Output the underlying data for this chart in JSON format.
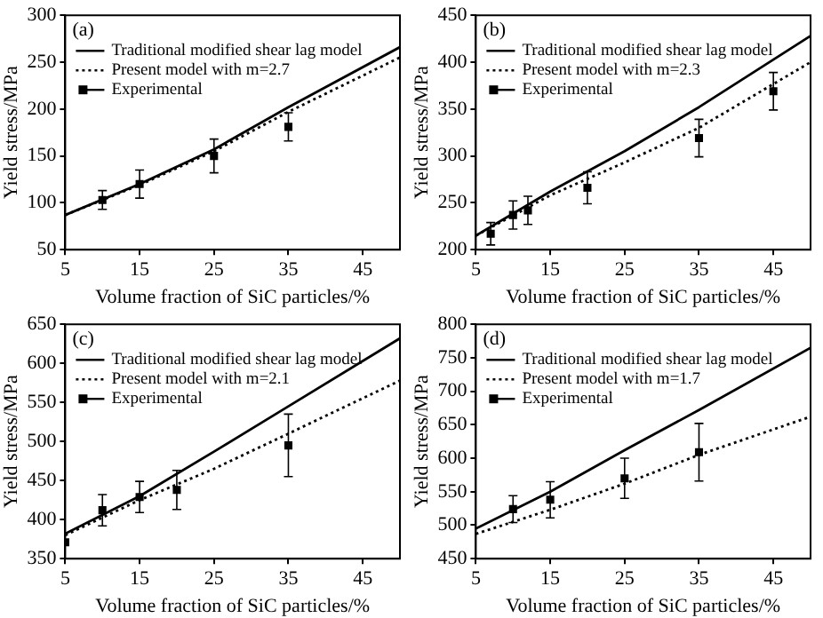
{
  "chart_data": [
    {
      "type": "line",
      "annotations": [
        "(a)"
      ],
      "xlabel": "Volume fraction of SiC particles/%",
      "ylabel": "Yield stress/MPa",
      "xlim": [
        5,
        50
      ],
      "xticks": [
        5,
        15,
        25,
        35,
        45
      ],
      "ylim": [
        50,
        300
      ],
      "yticks": [
        50,
        100,
        150,
        200,
        250,
        300
      ],
      "grid": false,
      "legend": "top left",
      "series": [
        {
          "name": "Traditional modified shear lag model",
          "color": "#000000",
          "line_style": "solid",
          "marker": "none",
          "x": [
            5,
            15,
            25,
            35,
            50
          ],
          "values": [
            87,
            120,
            157,
            202,
            266
          ]
        },
        {
          "name": "Present model with m=2.7",
          "color": "#000000",
          "line_style": "dotted",
          "marker": "none",
          "x": [
            5,
            15,
            25,
            35,
            50
          ],
          "values": [
            87,
            119,
            155,
            197,
            255
          ]
        },
        {
          "name": "Experimental",
          "type": "scatter",
          "color": "#000000",
          "marker": "square",
          "x": [
            10,
            15,
            25,
            35
          ],
          "values": [
            103,
            120,
            150,
            181
          ],
          "errors": [
            10,
            15,
            18,
            15
          ]
        }
      ]
    },
    {
      "type": "line",
      "annotations": [
        "(b)"
      ],
      "xlabel": "Volume fraction of SiC particles/%",
      "ylabel": "Yield stress/MPa",
      "xlim": [
        5,
        50
      ],
      "xticks": [
        5,
        15,
        25,
        35,
        45
      ],
      "ylim": [
        200,
        450
      ],
      "yticks": [
        200,
        250,
        300,
        350,
        400,
        450
      ],
      "grid": false,
      "legend": "top left",
      "series": [
        {
          "name": "Traditional modified shear lag model",
          "color": "#000000",
          "line_style": "solid",
          "marker": "none",
          "x": [
            5,
            15,
            25,
            35,
            50
          ],
          "values": [
            215,
            262,
            305,
            352,
            428
          ]
        },
        {
          "name": "Present model with m=2.3",
          "color": "#000000",
          "line_style": "dotted",
          "marker": "none",
          "x": [
            5,
            15,
            25,
            35,
            50
          ],
          "values": [
            215,
            258,
            293,
            330,
            400
          ]
        },
        {
          "name": "Experimental",
          "type": "scatter",
          "color": "#000000",
          "marker": "square",
          "x": [
            7,
            10,
            12,
            20,
            35,
            45
          ],
          "values": [
            217,
            237,
            242,
            266,
            319,
            369
          ],
          "errors": [
            12,
            15,
            15,
            17,
            20,
            20
          ]
        }
      ]
    },
    {
      "type": "line",
      "annotations": [
        "(c)"
      ],
      "xlabel": "Volume fraction of SiC particles/%",
      "ylabel": "Yield stress/MPa",
      "xlim": [
        5,
        50
      ],
      "xticks": [
        5,
        15,
        25,
        35,
        45
      ],
      "ylim": [
        350,
        650
      ],
      "yticks": [
        350,
        400,
        450,
        500,
        550,
        600,
        650
      ],
      "grid": false,
      "legend": "top left",
      "series": [
        {
          "name": "Traditional modified shear lag model",
          "color": "#000000",
          "line_style": "solid",
          "marker": "none",
          "x": [
            5,
            15,
            25,
            35,
            50
          ],
          "values": [
            382,
            430,
            487,
            545,
            632
          ]
        },
        {
          "name": "Present model with m=2.1",
          "color": "#000000",
          "line_style": "dotted",
          "marker": "none",
          "x": [
            5,
            15,
            25,
            35,
            50
          ],
          "values": [
            380,
            425,
            465,
            510,
            578
          ]
        },
        {
          "name": "Experimental",
          "type": "scatter",
          "color": "#000000",
          "marker": "square",
          "x": [
            5,
            10,
            15,
            20,
            35
          ],
          "values": [
            371,
            412,
            429,
            438,
            495
          ],
          "errors": [
            null,
            20,
            20,
            25,
            40
          ]
        }
      ]
    },
    {
      "type": "line",
      "annotations": [
        "(d)"
      ],
      "xlabel": "Volume fraction of SiC particles/%",
      "ylabel": "Yield stress/MPa",
      "xlim": [
        5,
        50
      ],
      "xticks": [
        5,
        15,
        25,
        35,
        45
      ],
      "ylim": [
        450,
        800
      ],
      "yticks": [
        450,
        500,
        550,
        600,
        650,
        700,
        750,
        800
      ],
      "grid": false,
      "legend": "top left",
      "series": [
        {
          "name": "Traditional modified shear lag model",
          "color": "#000000",
          "line_style": "solid",
          "marker": "none",
          "x": [
            5,
            15,
            25,
            35,
            50
          ],
          "values": [
            495,
            550,
            612,
            672,
            765
          ]
        },
        {
          "name": "Present model with m=1.7",
          "color": "#000000",
          "line_style": "dotted",
          "marker": "none",
          "x": [
            5,
            15,
            25,
            35,
            50
          ],
          "values": [
            487,
            523,
            562,
            605,
            662
          ]
        },
        {
          "name": "Experimental",
          "type": "scatter",
          "color": "#000000",
          "marker": "square",
          "x": [
            10,
            15,
            25,
            35
          ],
          "values": [
            524,
            538,
            570,
            609
          ],
          "errors": [
            20,
            27,
            30,
            43
          ]
        }
      ]
    }
  ]
}
